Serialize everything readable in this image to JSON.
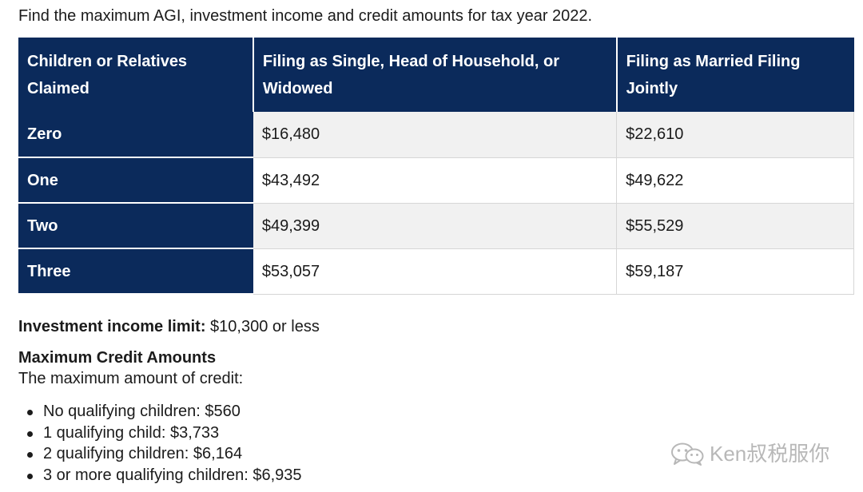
{
  "intro_text": "Find the maximum AGI, investment income and credit amounts for tax year 2022.",
  "table": {
    "headers": [
      "Children or Relatives Claimed",
      "Filing as Single, Head of Household, or Widowed",
      "Filing as Married Filing Jointly"
    ],
    "rows": [
      {
        "label": "Zero",
        "single": "$16,480",
        "joint": "$22,610"
      },
      {
        "label": "One",
        "single": "$43,492",
        "joint": "$49,622"
      },
      {
        "label": "Two",
        "single": "$49,399",
        "joint": "$55,529"
      },
      {
        "label": "Three",
        "single": "$53,057",
        "joint": "$59,187"
      }
    ]
  },
  "investment": {
    "label": "Investment income limit:",
    "value": " $10,300 or less"
  },
  "credits": {
    "heading": "Maximum Credit Amounts",
    "subheading": "The maximum amount of credit:",
    "items": [
      "No qualifying children: $560",
      "1 qualifying child: $3,733",
      "2 qualifying children: $6,164",
      "3 or more qualifying children: $6,935"
    ]
  },
  "watermark": {
    "icon": "wechat-icon",
    "text": "Ken叔税服你"
  },
  "colors": {
    "header_bg": "#0b2a5b",
    "stripe_bg": "#f1f1f1",
    "watermark": "#b8b8b8"
  }
}
